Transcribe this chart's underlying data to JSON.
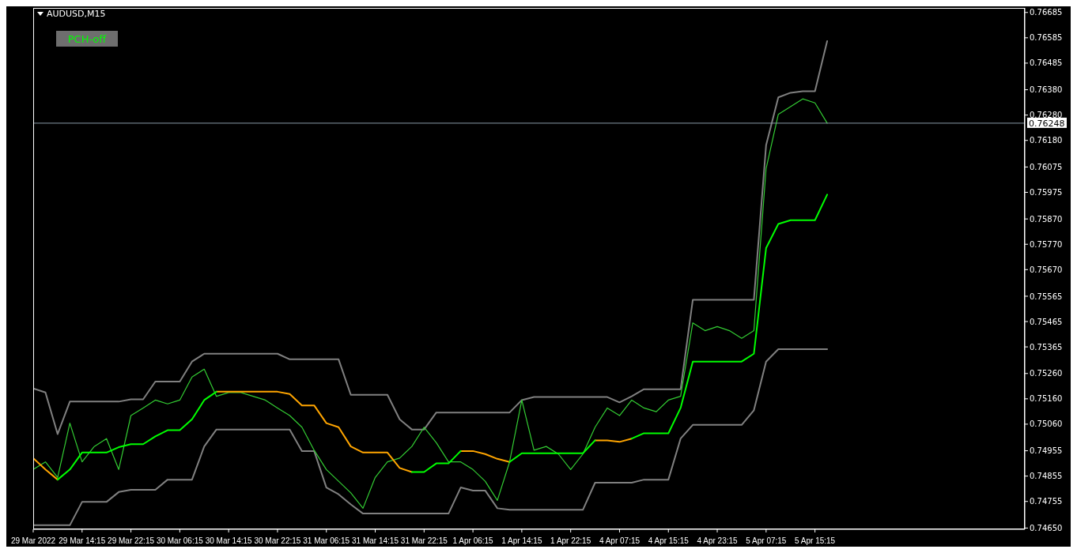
{
  "chart_data": {
    "type": "line",
    "title": "AUDUSD,M15",
    "annotations": [
      "PCH-off"
    ],
    "categories": [
      "29 Mar 2022",
      null,
      null,
      null,
      "29 Mar 14:15",
      null,
      null,
      null,
      "29 Mar 22:15",
      null,
      null,
      null,
      "30 Mar 06:15",
      null,
      null,
      null,
      "30 Mar 14:15",
      null,
      null,
      null,
      "30 Mar 22:15",
      null,
      null,
      null,
      "31 Mar 06:15",
      null,
      null,
      null,
      "31 Mar 14:15",
      null,
      null,
      null,
      "31 Mar 22:15",
      null,
      null,
      null,
      "1 Apr 06:15",
      null,
      null,
      null,
      "1 Apr 14:15",
      null,
      null,
      null,
      "1 Apr 22:15",
      null,
      null,
      null,
      "4 Apr 07:15",
      null,
      null,
      null,
      "4 Apr 15:15",
      null,
      null,
      null,
      "4 Apr 23:15",
      null,
      null,
      null,
      "5 Apr 07:15",
      null,
      null,
      null,
      "5 Apr 15:15",
      null
    ],
    "series": [
      {
        "color": "#808080",
        "values": [
          0.75201,
          0.75185,
          0.75021,
          0.75149,
          0.75149,
          0.75149,
          0.75149,
          0.75149,
          0.75158,
          0.75158,
          0.75228,
          0.75228,
          0.75228,
          0.75307,
          0.75338,
          0.75338,
          0.75338,
          0.75338,
          0.75338,
          0.75338,
          0.75338,
          0.75316,
          0.75316,
          0.75316,
          0.75316,
          0.75316,
          0.75176,
          0.75176,
          0.75176,
          0.75176,
          0.75079,
          0.75039,
          0.75039,
          0.75106,
          0.75106,
          0.75106,
          0.75106,
          0.75106,
          0.75106,
          0.75106,
          0.75155,
          0.75167,
          0.75167,
          0.75167,
          0.75167,
          0.75167,
          0.75167,
          0.75167,
          0.75146,
          0.7517,
          0.75198,
          0.75198,
          0.75198,
          0.75198,
          0.75551,
          0.75551,
          0.75551,
          0.75551,
          0.75551,
          0.75551,
          0.76161,
          0.7635,
          0.76368,
          0.76374,
          0.76374,
          0.76572
        ]
      },
      {
        "color": "#808080",
        "values": [
          0.74661,
          0.74661,
          0.74661,
          0.74661,
          0.74753,
          0.74753,
          0.74753,
          0.74792,
          0.74801,
          0.74801,
          0.74801,
          0.74841,
          0.74841,
          0.74841,
          0.74972,
          0.75039,
          0.75039,
          0.75039,
          0.75039,
          0.75039,
          0.75039,
          0.75039,
          0.74954,
          0.74954,
          0.7481,
          0.74783,
          0.74743,
          0.74707,
          0.74707,
          0.74707,
          0.74707,
          0.74707,
          0.74707,
          0.74707,
          0.74707,
          0.7481,
          0.74798,
          0.74798,
          0.74728,
          0.74722,
          0.74722,
          0.74722,
          0.74722,
          0.74722,
          0.74722,
          0.74722,
          0.74829,
          0.74829,
          0.74829,
          0.74829,
          0.74841,
          0.74841,
          0.74841,
          0.75003,
          0.75057,
          0.75057,
          0.75057,
          0.75057,
          0.75057,
          0.75115,
          0.75307,
          0.75356,
          0.75356,
          0.75356,
          0.75356,
          0.75356
        ]
      },
      {
        "color": "#33cc33",
        "values": [
          0.74881,
          0.74911,
          0.7485,
          0.75064,
          0.74911,
          0.74972,
          0.75003,
          0.74881,
          0.75094,
          0.75124,
          0.75155,
          0.7514,
          0.75155,
          0.75246,
          0.75277,
          0.7517,
          0.75185,
          0.75185,
          0.7517,
          0.75155,
          0.75124,
          0.75094,
          0.75048,
          0.74957,
          0.74881,
          0.74835,
          0.74789,
          0.74728,
          0.7485,
          0.74911,
          0.74926,
          0.74972,
          0.75048,
          0.74987,
          0.74911,
          0.74911,
          0.74881,
          0.74835,
          0.74759,
          0.74911,
          0.75155,
          0.74957,
          0.74972,
          0.74942,
          0.74881,
          0.74942,
          0.75048,
          0.75124,
          0.75094,
          0.75155,
          0.75124,
          0.75109,
          0.75155,
          0.7517,
          0.7546,
          0.75429,
          0.75445,
          0.75429,
          0.75399,
          0.75429,
          0.76069,
          0.76283,
          0.76313,
          0.76344,
          0.76328,
          0.76248
        ]
      },
      {
        "color": "#ffa500",
        "values": [
          0.74926,
          0.74881,
          0.74841,
          null,
          null,
          null,
          null,
          null,
          null,
          null,
          null,
          null,
          null,
          null,
          null,
          0.75188,
          0.75188,
          0.75188,
          0.75188,
          0.75188,
          0.75188,
          0.75179,
          0.75134,
          0.75134,
          0.75064,
          0.75048,
          0.74972,
          0.74948,
          0.74948,
          0.74948,
          0.74887,
          0.74871,
          null,
          null,
          null,
          0.74954,
          0.74954,
          0.74942,
          0.74923,
          0.74911,
          null,
          null,
          null,
          null,
          null,
          null,
          0.74996,
          0.74996,
          0.7499,
          0.75003,
          null,
          null,
          null,
          null,
          null,
          null,
          null,
          null,
          null,
          null,
          null,
          null,
          null,
          null,
          null,
          null
        ]
      },
      {
        "color": "#00ff00",
        "values": [
          null,
          null,
          0.74841,
          0.74881,
          0.74948,
          0.74948,
          0.74948,
          0.74969,
          0.74981,
          0.74981,
          0.75012,
          0.75036,
          0.75036,
          0.75079,
          0.75155,
          0.75188,
          null,
          null,
          null,
          null,
          null,
          null,
          null,
          null,
          null,
          null,
          null,
          null,
          null,
          null,
          null,
          0.74871,
          0.74871,
          0.74905,
          0.74905,
          0.74954,
          null,
          null,
          null,
          0.74911,
          0.74945,
          0.74945,
          0.74945,
          0.74945,
          0.74945,
          0.74945,
          0.74996,
          null,
          null,
          0.75003,
          0.75024,
          0.75024,
          0.75024,
          0.75124,
          0.75307,
          0.75307,
          0.75307,
          0.75307,
          0.75307,
          0.75338,
          0.75755,
          0.7585,
          0.75865,
          0.75865,
          0.75865,
          0.75966
        ]
      }
    ],
    "ylim": [
      0.74645,
      0.76703
    ],
    "yticks": [
      {
        "value": 0.76685,
        "label": "0.76685"
      },
      {
        "value": 0.76585,
        "label": "0.76585"
      },
      {
        "value": 0.76485,
        "label": "0.76485"
      },
      {
        "value": 0.7638,
        "label": "0.76380"
      },
      {
        "value": 0.7628,
        "label": "0.76280"
      },
      {
        "value": 0.7618,
        "label": "0.76180"
      },
      {
        "value": 0.76075,
        "label": "0.76075"
      },
      {
        "value": 0.75975,
        "label": "0.75975"
      },
      {
        "value": 0.7587,
        "label": "0.75870"
      },
      {
        "value": 0.7577,
        "label": "0.75770"
      },
      {
        "value": 0.7567,
        "label": "0.75670"
      },
      {
        "value": 0.75565,
        "label": "0.75565"
      },
      {
        "value": 0.75465,
        "label": "0.75465"
      },
      {
        "value": 0.75365,
        "label": "0.75365"
      },
      {
        "value": 0.7526,
        "label": "0.75260"
      },
      {
        "value": 0.7516,
        "label": "0.75160"
      },
      {
        "value": 0.7506,
        "label": "0.75060"
      },
      {
        "value": 0.74955,
        "label": "0.74955"
      },
      {
        "value": 0.74855,
        "label": "0.74855"
      },
      {
        "value": 0.74755,
        "label": "0.74755"
      },
      {
        "value": 0.7465,
        "label": "0.74650"
      }
    ],
    "ref_lines": [
      {
        "axis": "y",
        "value": 0.76248,
        "label": "0.76248",
        "color": "#8a9aa8"
      }
    ]
  }
}
